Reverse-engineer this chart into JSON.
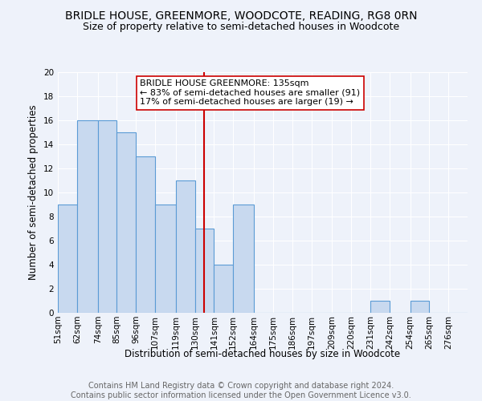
{
  "title": "BRIDLE HOUSE, GREENMORE, WOODCOTE, READING, RG8 0RN",
  "subtitle": "Size of property relative to semi-detached houses in Woodcote",
  "xlabel": "Distribution of semi-detached houses by size in Woodcote",
  "ylabel": "Number of semi-detached properties",
  "bin_labels": [
    "51sqm",
    "62sqm",
    "74sqm",
    "85sqm",
    "96sqm",
    "107sqm",
    "119sqm",
    "130sqm",
    "141sqm",
    "152sqm",
    "164sqm",
    "175sqm",
    "186sqm",
    "197sqm",
    "209sqm",
    "220sqm",
    "231sqm",
    "242sqm",
    "254sqm",
    "265sqm",
    "276sqm"
  ],
  "bin_edges": [
    51,
    62,
    74,
    85,
    96,
    107,
    119,
    130,
    141,
    152,
    164,
    175,
    186,
    197,
    209,
    220,
    231,
    242,
    254,
    265,
    276,
    287
  ],
  "counts": [
    9,
    16,
    16,
    15,
    13,
    9,
    11,
    7,
    4,
    9,
    0,
    0,
    0,
    0,
    0,
    0,
    1,
    0,
    1,
    0,
    0
  ],
  "bar_color": "#c8d9ef",
  "bar_edge_color": "#5b9bd5",
  "reference_line_x": 135,
  "reference_line_color": "#cc0000",
  "annotation_title": "BRIDLE HOUSE GREENMORE: 135sqm",
  "annotation_line1": "← 83% of semi-detached houses are smaller (91)",
  "annotation_line2": "17% of semi-detached houses are larger (19) →",
  "annotation_box_color": "#ffffff",
  "annotation_box_edge_color": "#cc0000",
  "ylim": [
    0,
    20
  ],
  "yticks": [
    0,
    2,
    4,
    6,
    8,
    10,
    12,
    14,
    16,
    18,
    20
  ],
  "footer_line1": "Contains HM Land Registry data © Crown copyright and database right 2024.",
  "footer_line2": "Contains public sector information licensed under the Open Government Licence v3.0.",
  "background_color": "#eef2fa",
  "plot_background_color": "#eef2fa",
  "title_fontsize": 10,
  "subtitle_fontsize": 9,
  "axis_label_fontsize": 8.5,
  "tick_fontsize": 7.5,
  "annotation_fontsize": 8,
  "footer_fontsize": 7
}
